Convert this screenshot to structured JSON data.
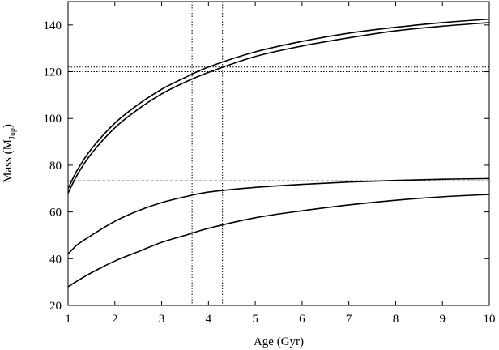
{
  "chart_data": {
    "type": "line",
    "xlabel": "Age (Gyr)",
    "ylabel": {
      "main": "Mass (M",
      "sub": "Jup",
      "close": ")"
    },
    "xlim": [
      1,
      10
    ],
    "ylim": [
      20,
      150
    ],
    "xticks": [
      1,
      2,
      3,
      4,
      5,
      6,
      7,
      8,
      9,
      10
    ],
    "yticks": [
      20,
      40,
      60,
      80,
      100,
      120,
      140
    ],
    "grid": false,
    "legend": "none",
    "series": [
      {
        "x": [
          1,
          1.2,
          1.5,
          2,
          2.5,
          3,
          3.5,
          4,
          5,
          6,
          7,
          8,
          9,
          10
        ],
        "y": [
          70,
          78,
          87,
          98,
          106,
          112.5,
          117.5,
          122,
          128.5,
          133,
          136.5,
          139,
          141,
          142.5
        ]
      },
      {
        "x": [
          1,
          1.2,
          1.5,
          2,
          2.5,
          3,
          3.5,
          4,
          5,
          6,
          7,
          8,
          9,
          10
        ],
        "y": [
          68,
          76,
          85,
          96,
          104,
          110.5,
          115.5,
          119.7,
          126.5,
          131,
          134.5,
          137.5,
          139.5,
          141
        ]
      },
      {
        "x": [
          1,
          1.2,
          1.5,
          2,
          2.5,
          3,
          3.5,
          4,
          5,
          6,
          7,
          8,
          9,
          10
        ],
        "y": [
          42,
          46,
          50,
          56,
          60.5,
          64,
          66.5,
          68.5,
          70.5,
          71.8,
          72.8,
          73.5,
          74,
          74.3
        ]
      },
      {
        "x": [
          1,
          1.2,
          1.5,
          2,
          2.5,
          3,
          3.5,
          4,
          5,
          6,
          7,
          8,
          9,
          10
        ],
        "y": [
          28,
          30.5,
          34,
          39,
          43,
          47,
          50,
          53,
          57.5,
          60.5,
          63,
          65,
          66.5,
          67.5
        ]
      }
    ],
    "reference_lines": {
      "horizontal": [
        {
          "y": 73.3,
          "style": "dashed"
        },
        {
          "y": 120,
          "style": "dotted"
        },
        {
          "y": 122,
          "style": "dotted"
        }
      ],
      "vertical": [
        {
          "x": 3.65,
          "style": "dotted"
        },
        {
          "x": 4.3,
          "style": "dotted"
        }
      ]
    },
    "colors": {
      "line": "#000000",
      "background": "#ffffff"
    }
  }
}
